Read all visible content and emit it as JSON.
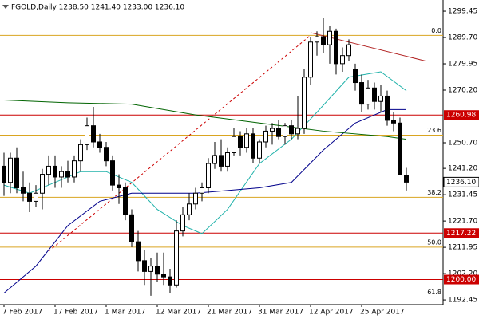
{
  "chart_data": {
    "type": "candlestick",
    "title": "FGOLD,Daily  1238.50 1241.40 1233.00 1236.10",
    "categories": [
      "7 Feb 2017",
      null,
      null,
      null,
      null,
      null,
      null,
      null,
      "17 Feb 2017",
      null,
      null,
      null,
      null,
      null,
      null,
      null,
      "1 Mar 2017",
      null,
      null,
      null,
      null,
      null,
      null,
      null,
      "12 Mar 2017",
      null,
      null,
      null,
      null,
      null,
      null,
      null,
      "21 Mar 2017",
      null,
      null,
      null,
      null,
      null,
      null,
      null,
      "31 Mar 2017",
      null,
      null,
      null,
      null,
      null,
      null,
      null,
      "12 Apr 2017",
      null,
      null,
      null,
      null,
      null,
      null,
      null,
      "25 Apr 2017",
      null,
      null,
      null,
      null,
      null,
      null,
      null
    ],
    "open": [
      1242,
      1236,
      1245,
      1234,
      1232,
      1229,
      1232,
      1239,
      1242,
      1238,
      1240,
      1238,
      1244,
      1250,
      1257,
      1251,
      1249,
      1244,
      1235,
      1234,
      1224,
      1214,
      1207,
      1203,
      1205,
      1202,
      1201,
      1198,
      1218,
      1224,
      1228,
      1232,
      1234,
      1243,
      1246,
      1242,
      1247,
      1253,
      1249,
      1254,
      1245,
      1251,
      1255,
      1256,
      1253,
      1257,
      1254,
      1256,
      1275,
      1288,
      1290,
      1287,
      1292,
      1280,
      1283,
      1278,
      1273,
      1265,
      1271,
      1266,
      1268,
      1259,
      1258,
      1238.5
    ],
    "high": [
      1247,
      1247,
      1249,
      1240,
      1236,
      1235,
      1241,
      1246,
      1246,
      1242,
      1244,
      1246,
      1252,
      1260,
      1264,
      1254,
      1251,
      1246,
      1239,
      1236,
      1226,
      1218,
      1211,
      1208,
      1210,
      1210,
      1204,
      1222,
      1227,
      1232,
      1234,
      1236,
      1245,
      1251,
      1252,
      1249,
      1256,
      1255,
      1256,
      1256,
      1252,
      1257,
      1258,
      1259,
      1258,
      1259,
      1268,
      1278,
      1290,
      1292,
      1297,
      1294,
      1293,
      1286,
      1289,
      1280,
      1276,
      1274,
      1273,
      1272,
      1270,
      1262,
      1260,
      1241.4
    ],
    "low": [
      1231,
      1232,
      1232,
      1229,
      1225,
      1227,
      1226,
      1235,
      1234,
      1234,
      1236,
      1236,
      1240,
      1248,
      1249,
      1247,
      1242,
      1233,
      1228,
      1222,
      1212,
      1203,
      1198,
      1194,
      1199,
      1198,
      1195,
      1197,
      1216,
      1222,
      1226,
      1229,
      1232,
      1241,
      1240,
      1240,
      1246,
      1246,
      1247,
      1243,
      1243,
      1249,
      1250,
      1252,
      1250,
      1252,
      1252,
      1254,
      1272,
      1283,
      1284,
      1280,
      1276,
      1277,
      1281,
      1270,
      1262,
      1263,
      1263,
      1262,
      1257,
      1255,
      1239,
      1233
    ],
    "close": [
      1236,
      1245,
      1234,
      1232,
      1229,
      1232,
      1239,
      1242,
      1238,
      1240,
      1238,
      1244,
      1250,
      1257,
      1251,
      1249,
      1244,
      1235,
      1234,
      1224,
      1214,
      1207,
      1203,
      1205,
      1202,
      1201,
      1198,
      1218,
      1224,
      1228,
      1232,
      1234,
      1243,
      1246,
      1242,
      1247,
      1253,
      1249,
      1254,
      1245,
      1251,
      1255,
      1256,
      1253,
      1257,
      1254,
      1256,
      1275,
      1288,
      1290,
      1287,
      1292,
      1280,
      1283,
      1287,
      1273,
      1265,
      1271,
      1266,
      1268,
      1259,
      1258,
      1239,
      1236.1
    ],
    "up_color": "#ffffff",
    "down_color": "#000000",
    "ylim": [
      1190.7,
      1303.6
    ],
    "yticks": [
      1299.45,
      {
        "value": 1289.7,
        "label": "1289.70"
      },
      1279.95,
      {
        "value": 1270.2,
        "label": "1270.20"
      },
      {
        "value": 1250.7,
        "label": "1250.70"
      },
      {
        "value": 1241.2,
        "label": "1241.20"
      },
      1231.45,
      {
        "value": 1221.7,
        "label": "1221.70"
      },
      1211.95,
      {
        "value": 1202.2,
        "label": "1202.20"
      },
      1192.45
    ],
    "moving_averages": [
      {
        "color": "#20b2aa",
        "x": [
          0,
          4,
          8,
          12,
          16,
          20,
          24,
          28,
          31,
          35,
          40,
          45,
          49,
          54,
          59,
          63
        ],
        "values": [
          1235,
          1232,
          1236,
          1240,
          1240,
          1236,
          1226,
          1220,
          1217,
          1226,
          1243,
          1252,
          1262,
          1275,
          1277,
          1270
        ]
      },
      {
        "color": "#00008b",
        "x": [
          0,
          5,
          10,
          15,
          20,
          25,
          30,
          35,
          40,
          45,
          50,
          55,
          60,
          63
        ],
        "values": [
          1195,
          1205,
          1220,
          1229,
          1232,
          1232,
          1232,
          1233,
          1234,
          1236,
          1248,
          1258,
          1263,
          1263
        ]
      },
      {
        "color": "#006400",
        "x": [
          0,
          10,
          20,
          30,
          40,
          50,
          60,
          63
        ],
        "values": [
          1266.5,
          1265.5,
          1265,
          1261,
          1258,
          1255,
          1253,
          1252
        ]
      }
    ],
    "trendlines": [
      {
        "color": "#b22222",
        "dashed": false,
        "x": [
          48,
          66
        ],
        "values": [
          1291.5,
          1281
        ]
      },
      {
        "color": "#cc0000",
        "dashed": true,
        "x": [
          7,
          48
        ],
        "values": [
          1210.5,
          1290.5
        ]
      }
    ],
    "fib_color": "#daa520",
    "fib_levels": [
      {
        "label": "0.0",
        "value": 1290.5
      },
      {
        "label": "23.6",
        "value": 1253.5
      },
      {
        "label": "38.2",
        "value": 1230.5
      },
      {
        "label": "50.0",
        "value": 1212
      },
      {
        "label": "61.8",
        "value": 1193.5
      }
    ],
    "level_color": "#cc0000",
    "levels": [
      1260.98,
      1217.22,
      {
        "value": 1200,
        "label": "1200.00"
      }
    ],
    "last_price": {
      "value": 1236.1,
      "label": "1236.10"
    }
  }
}
